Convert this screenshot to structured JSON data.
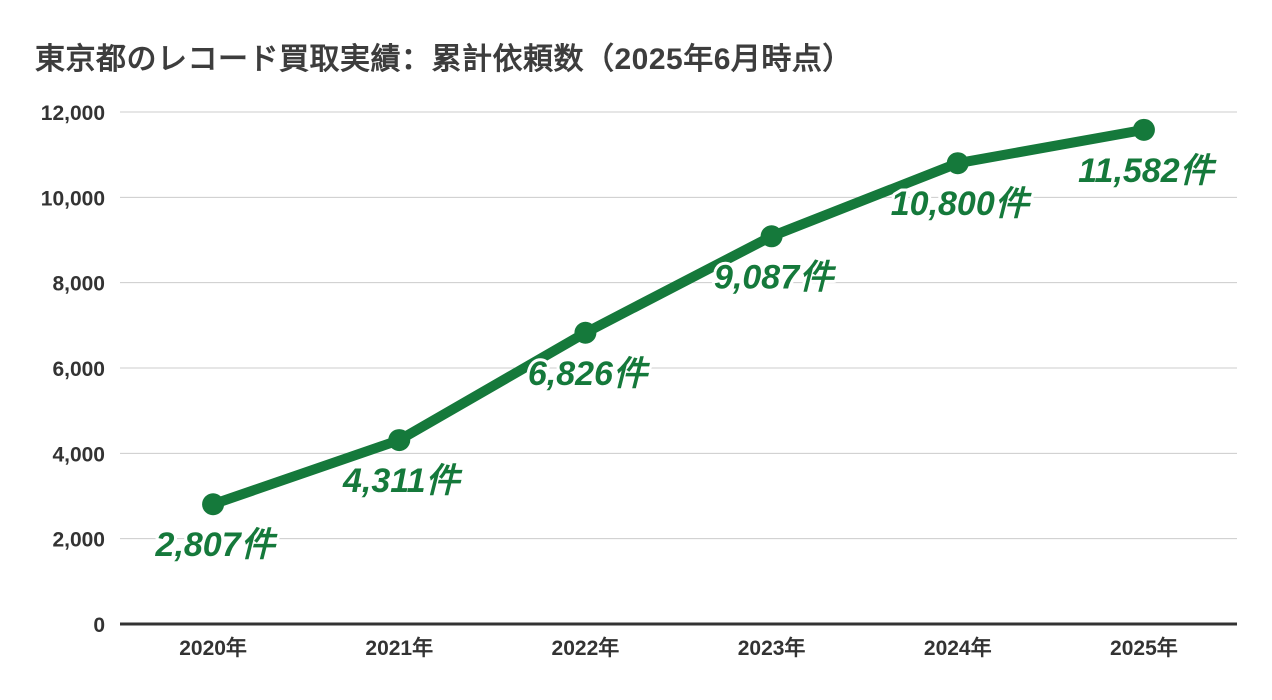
{
  "title": "東京都のレコード買取実績：累計依頼数（2025年6月時点）",
  "colors": {
    "line": "#15793B",
    "marker": "#15793B",
    "data_label": "#15793B",
    "title_text": "#3D3D3D",
    "axis_text": "#333333",
    "gridline": "#CCCCCC",
    "axis_line": "#333333",
    "background": "#FFFFFF"
  },
  "chart_data": {
    "type": "line",
    "title": "東京都のレコード買取実績：累計依頼数（2025年6月時点）",
    "categories": [
      "2020年",
      "2021年",
      "2022年",
      "2023年",
      "2024年",
      "2025年"
    ],
    "series": [
      {
        "name": "累計依頼数",
        "values": [
          2807,
          4311,
          6826,
          9087,
          10800,
          11582
        ],
        "data_labels": [
          "2,807件",
          "4,311件",
          "6,826件",
          "9,087件",
          "10,800件",
          "11,582件"
        ]
      }
    ],
    "xlabel": "",
    "ylabel": "",
    "ylim": [
      0,
      12000
    ],
    "y_tick_interval": 2000,
    "y_tick_labels": [
      "0",
      "2,000",
      "4,000",
      "6,000",
      "8,000",
      "10,000",
      "12,000"
    ],
    "grid": true,
    "legend": "none",
    "marker": "circle",
    "data_label_style": "bold-italic-below-point"
  }
}
